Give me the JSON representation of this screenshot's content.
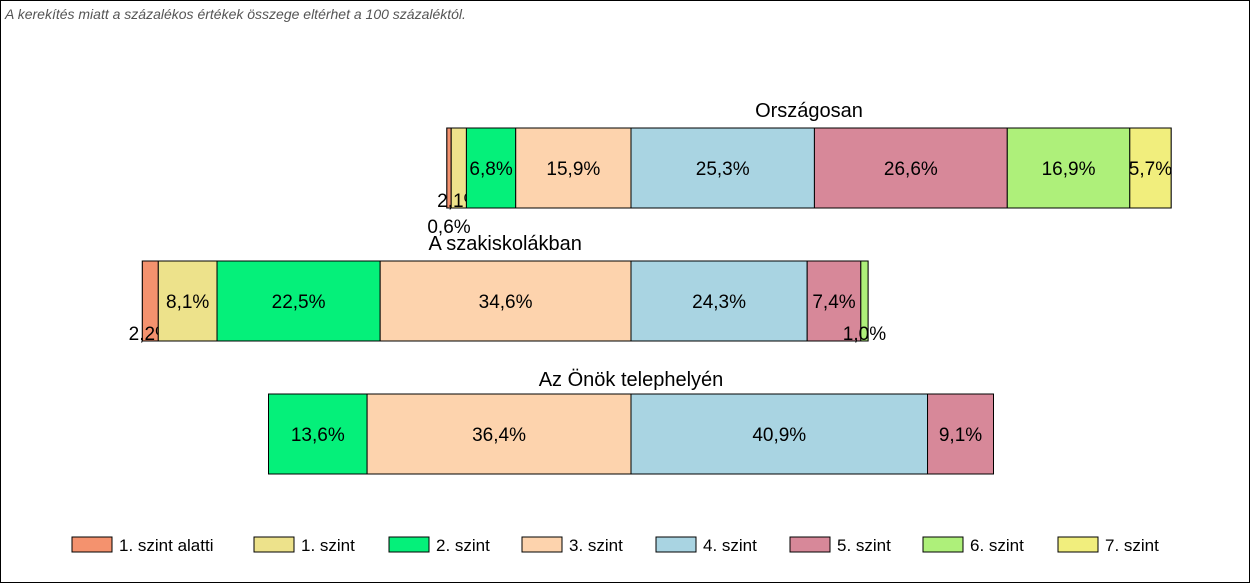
{
  "note": "A kerekítés miatt a  százalékos értékek összege eltérhet a 100 százaléktól.",
  "colors": {
    "1. szint alatti": "#f4926e",
    "1. szint": "#ede28b",
    "2. szint": "#05f07a",
    "3. szint": "#fdd3ad",
    "4. szint": "#a9d4e2",
    "5. szint": "#d78899",
    "6. szint": "#aef07a",
    "7. szint": "#f1ee7d"
  },
  "chart_data": {
    "type": "bar",
    "orientation": "horizontal-stacked",
    "categories": [
      "1. szint alatti",
      "1. szint",
      "2. szint",
      "3. szint",
      "4. szint",
      "5. szint",
      "6. szint",
      "7. szint"
    ],
    "legend_position": "bottom",
    "grid": false,
    "groups": [
      {
        "title": "Országosan",
        "values": [
          0.6,
          2.1,
          6.8,
          15.9,
          25.3,
          26.6,
          16.9,
          5.7
        ],
        "labels": [
          "0,6%",
          "2,1%",
          "6,8%",
          "15,9%",
          "25,3%",
          "26,6%",
          "16,9%",
          "5,7%"
        ]
      },
      {
        "title": "A szakiskolákban",
        "values": [
          2.2,
          8.1,
          22.5,
          34.6,
          24.3,
          7.4,
          1.0,
          0
        ],
        "labels": [
          "2,2%",
          "8,1%",
          "22,5%",
          "34,6%",
          "24,3%",
          "7,4%",
          "1,0%",
          ""
        ]
      },
      {
        "title": "Az Önök telephelyén",
        "values": [
          0,
          0,
          13.6,
          36.4,
          40.9,
          9.1,
          0,
          0
        ],
        "labels": [
          "",
          "",
          "13,6%",
          "36,4%",
          "40,9%",
          "9,1%",
          "",
          ""
        ]
      }
    ]
  }
}
